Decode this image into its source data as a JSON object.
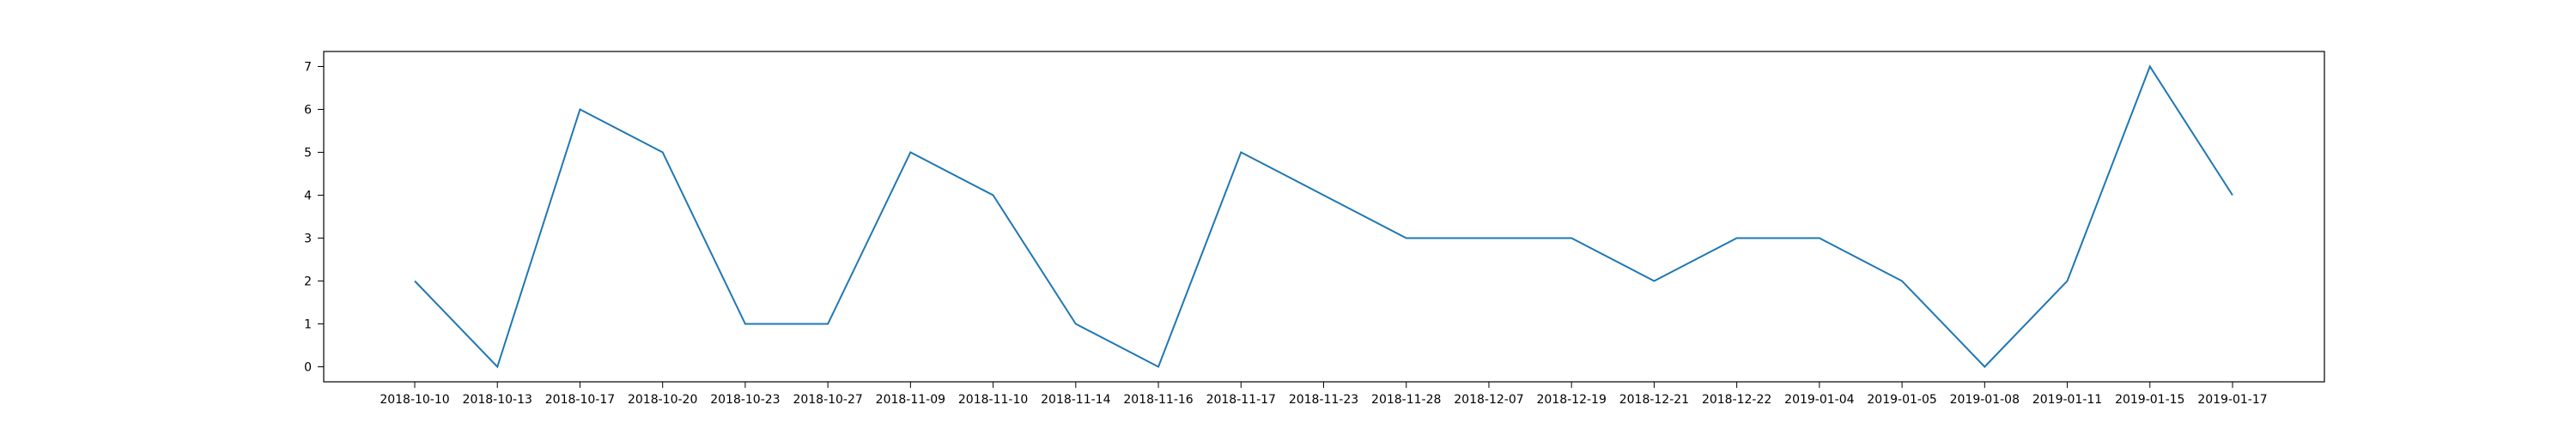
{
  "chart_data": {
    "type": "line",
    "title": "",
    "xlabel": "",
    "ylabel": "",
    "categories": [
      "2018-10-10",
      "2018-10-13",
      "2018-10-17",
      "2018-10-20",
      "2018-10-23",
      "2018-10-27",
      "2018-11-09",
      "2018-11-10",
      "2018-11-14",
      "2018-11-16",
      "2018-11-17",
      "2018-11-23",
      "2018-11-28",
      "2018-12-07",
      "2018-12-19",
      "2018-12-21",
      "2018-12-22",
      "2019-01-04",
      "2019-01-05",
      "2019-01-08",
      "2019-01-11",
      "2019-01-15",
      "2019-01-17"
    ],
    "values": [
      2,
      0,
      6,
      5,
      1,
      1,
      5,
      4,
      1,
      0,
      5,
      4,
      3,
      3,
      3,
      2,
      3,
      3,
      2,
      0,
      2,
      7,
      4
    ],
    "ylim": [
      -0.35,
      7.35
    ],
    "yticks": [
      0,
      1,
      2,
      3,
      4,
      5,
      6,
      7
    ],
    "grid": false,
    "legend": "none",
    "line_color": "#1f77b4"
  }
}
